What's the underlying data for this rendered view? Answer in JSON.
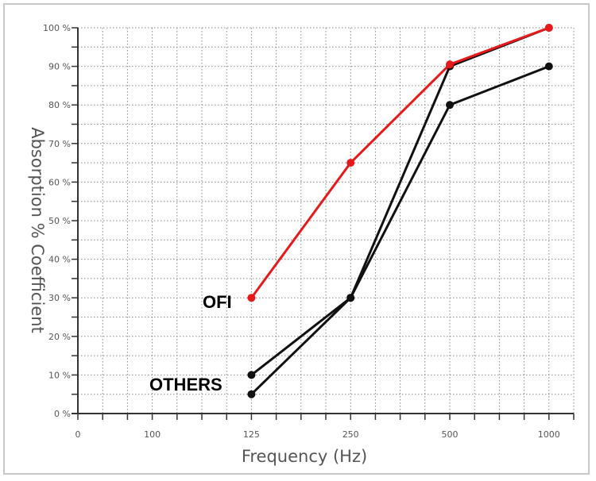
{
  "chart_data": {
    "type": "line",
    "title": "",
    "xlabel": "Frequency (Hz)",
    "ylabel": "Absorption % Coefficient",
    "x_tick_labels": [
      "0",
      "100",
      "125",
      "250",
      "500",
      "1000"
    ],
    "y_tick_labels": [
      "0 %",
      "10 %",
      "20 %",
      "30 %",
      "40 %",
      "50 %",
      "60 %",
      "70 %",
      "80 %",
      "90 %",
      "100 %"
    ],
    "ylim": [
      0,
      100
    ],
    "grid": true,
    "x": [
      "125",
      "250",
      "500",
      "1000"
    ],
    "series": [
      {
        "name": "OFI",
        "color": "#e8191b",
        "values": [
          30,
          65,
          90.5,
          100
        ]
      },
      {
        "name": "OTHERS",
        "color": "#111111",
        "values": [
          10,
          30,
          90,
          100
        ]
      },
      {
        "name": "OTHERS",
        "color": "#111111",
        "values": [
          5,
          30,
          80,
          90
        ]
      }
    ],
    "annotations": [
      "OFI",
      "OTHERS"
    ]
  }
}
